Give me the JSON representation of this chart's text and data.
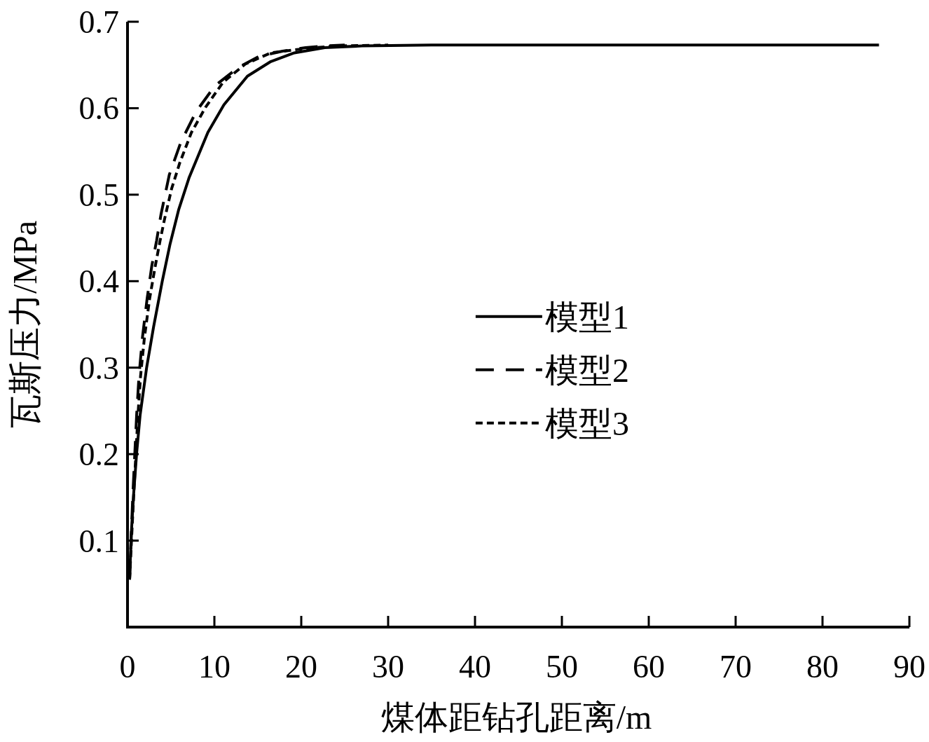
{
  "chart_data": {
    "type": "line",
    "xlabel": "煤体距钻孔距离/m",
    "ylabel": "瓦斯压力/MPa",
    "xlim": [
      0,
      90
    ],
    "ylim": [
      0,
      0.7
    ],
    "xticks": [
      0,
      10,
      20,
      30,
      40,
      50,
      60,
      70,
      80,
      90
    ],
    "yticks": [
      0.1,
      0.2,
      0.3,
      0.4,
      0.5,
      0.6,
      0.7
    ],
    "grid": false,
    "legend": "center",
    "series": [
      {
        "name": "模型1",
        "color": "#000000",
        "line_style": "solid",
        "x": [
          0.24,
          0.43,
          0.7,
          1.05,
          1.45,
          2.2,
          3.0,
          4.0,
          4.9,
          5.9,
          7.1,
          9.25,
          11.1,
          13.8,
          16.5,
          19.2,
          22.7,
          27,
          35,
          86.5
        ],
        "values": [
          0.055,
          0.107,
          0.153,
          0.201,
          0.245,
          0.3,
          0.347,
          0.4,
          0.443,
          0.483,
          0.52,
          0.572,
          0.604,
          0.637,
          0.654,
          0.664,
          0.67,
          0.672,
          0.673,
          0.673
        ]
      },
      {
        "name": "模型2",
        "color": "#000000",
        "line_style": "dashed",
        "x": [
          0.24,
          0.6,
          1.05,
          1.32,
          1.72,
          2.26,
          2.8,
          3.35,
          3.85,
          4.81,
          6.15,
          7.9,
          10.06,
          12.74,
          15.16,
          17.85,
          20.5,
          22.7,
          25
        ],
        "values": [
          0.055,
          0.15,
          0.245,
          0.29,
          0.335,
          0.38,
          0.418,
          0.447,
          0.477,
          0.523,
          0.561,
          0.596,
          0.626,
          0.647,
          0.66,
          0.666,
          0.67,
          0.672,
          0.673
        ]
      },
      {
        "name": "模型3",
        "color": "#000000",
        "line_style": "dotted",
        "x": [
          0.24,
          0.7,
          1.2,
          1.5,
          1.95,
          2.55,
          3.15,
          3.75,
          4.27,
          5.08,
          6.02,
          7.36,
          8.98,
          11.0,
          13.55,
          16.5,
          20.5,
          24,
          30
        ],
        "values": [
          0.055,
          0.15,
          0.245,
          0.29,
          0.335,
          0.38,
          0.415,
          0.447,
          0.472,
          0.507,
          0.537,
          0.572,
          0.601,
          0.63,
          0.651,
          0.664,
          0.669,
          0.672,
          0.673
        ]
      }
    ]
  }
}
